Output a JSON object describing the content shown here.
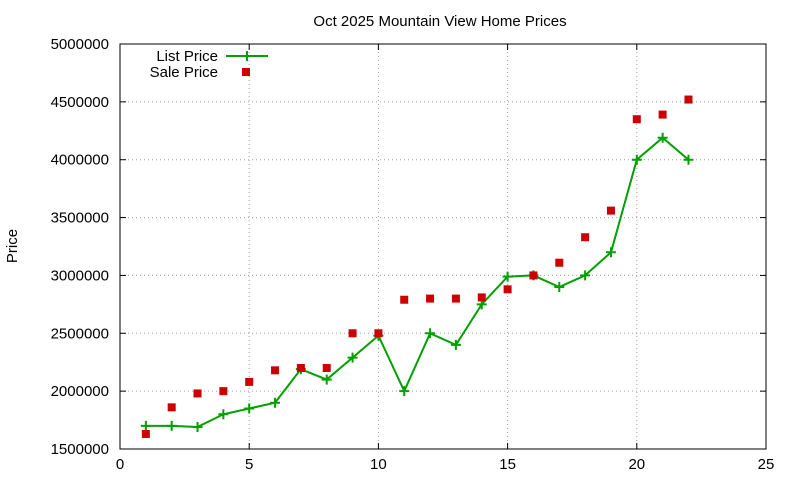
{
  "chart_data": {
    "type": "line",
    "title": "Oct 2025 Mountain View Home Prices",
    "xlabel": "",
    "ylabel": "Price",
    "xlim": [
      0,
      25
    ],
    "ylim": [
      1500000,
      5000000
    ],
    "x_ticks": [
      0,
      5,
      10,
      15,
      20,
      25
    ],
    "y_ticks": [
      1500000,
      2000000,
      2500000,
      3000000,
      3500000,
      4000000,
      4500000,
      5000000
    ],
    "grid": true,
    "legend_position": "top-left",
    "series": [
      {
        "name": "List Price",
        "style": "line-points",
        "color": "#00a000",
        "points": [
          [
            1,
            1700000
          ],
          [
            2,
            1700000
          ],
          [
            3,
            1690000
          ],
          [
            4,
            1800000
          ],
          [
            5,
            1850000
          ],
          [
            6,
            1900000
          ],
          [
            7,
            2190000
          ],
          [
            8,
            2100000
          ],
          [
            9,
            2290000
          ],
          [
            10,
            2480000
          ],
          [
            11,
            2000000
          ],
          [
            12,
            2500000
          ],
          [
            13,
            2400000
          ],
          [
            14,
            2750000
          ],
          [
            15,
            2990000
          ],
          [
            16,
            3000000
          ],
          [
            17,
            2900000
          ],
          [
            18,
            3000000
          ],
          [
            19,
            3200000
          ],
          [
            20,
            4000000
          ],
          [
            21,
            4190000
          ],
          [
            22,
            4000000
          ]
        ]
      },
      {
        "name": "Sale Price",
        "style": "points",
        "color": "#cc0000",
        "points": [
          [
            1,
            1630000
          ],
          [
            2,
            1860000
          ],
          [
            3,
            1980000
          ],
          [
            4,
            2000000
          ],
          [
            5,
            2080000
          ],
          [
            6,
            2180000
          ],
          [
            7,
            2200000
          ],
          [
            8,
            2200000
          ],
          [
            9,
            2500000
          ],
          [
            10,
            2500000
          ],
          [
            11,
            2790000
          ],
          [
            12,
            2800000
          ],
          [
            13,
            2800000
          ],
          [
            14,
            2810000
          ],
          [
            15,
            2880000
          ],
          [
            16,
            3000000
          ],
          [
            17,
            3110000
          ],
          [
            18,
            3330000
          ],
          [
            19,
            3560000
          ],
          [
            20,
            4350000
          ],
          [
            21,
            4390000
          ],
          [
            22,
            4520000
          ]
        ]
      }
    ]
  }
}
